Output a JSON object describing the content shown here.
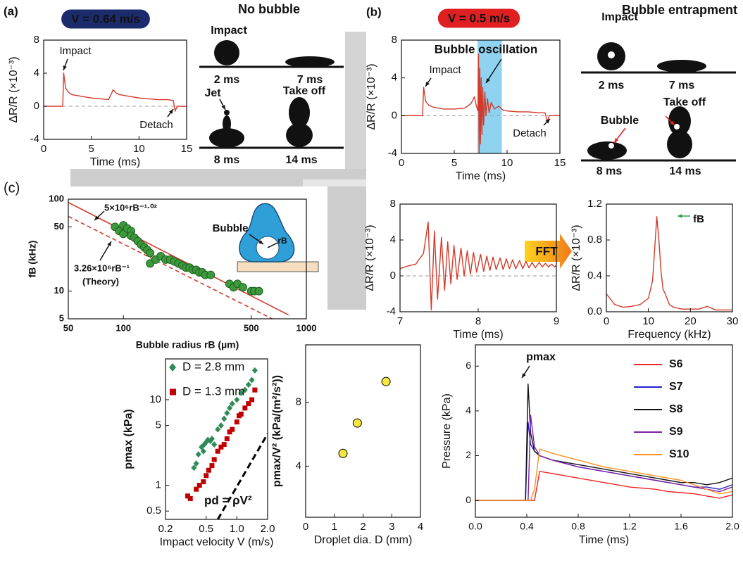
{
  "panel_labels": [
    "(a)",
    "(b)",
    "(c)"
  ],
  "fft_arrow": "FFT",
  "photos": [
    {
      "title": "No bubble",
      "labels": [
        "Impact",
        "2 ms",
        "7 ms",
        "Jet",
        "Take off",
        "8 ms",
        "14 ms"
      ]
    },
    {
      "title": "Bubble entrapment",
      "labels": [
        "Impact",
        "2 ms",
        "7 ms",
        "Bubble",
        "Take off",
        "8 ms",
        "14 ms"
      ]
    }
  ],
  "chart_data": [
    {
      "type": "line",
      "xlabel": "Time (ms)",
      "ylabel": "ΔR/R (×10⁻³)",
      "xlim": [
        0,
        15
      ],
      "ylim": [
        -4,
        8
      ],
      "xticks": [
        0,
        5,
        10,
        15
      ],
      "yticks": [
        -4,
        0,
        4,
        8
      ],
      "reference_line": 0,
      "annotations": [
        "V = 0.64 m/s",
        "Impact",
        "Detach"
      ],
      "x": [
        0,
        1,
        2,
        2.1,
        2.3,
        2.6,
        3,
        4,
        5,
        6,
        6.8,
        7.1,
        7.3,
        7.6,
        8,
        9,
        10,
        11,
        12,
        13,
        13.6,
        13.8,
        14,
        15
      ],
      "series": [
        {
          "color": "#d23a2a",
          "values": [
            0,
            0,
            0,
            4,
            2.2,
            1.7,
            1.4,
            1.2,
            1,
            0.9,
            0.8,
            1.5,
            2,
            1.6,
            1.4,
            1.2,
            1,
            0.9,
            0.8,
            0.8,
            0.7,
            -0.6,
            0,
            0
          ]
        }
      ]
    },
    {
      "type": "line",
      "xlabel": "Time (ms)",
      "ylabel": "ΔR/R (×10⁻³)",
      "xlim": [
        0,
        15
      ],
      "ylim": [
        -4,
        8
      ],
      "xticks": [
        0,
        5,
        10,
        15
      ],
      "yticks": [
        -4,
        0,
        4,
        8
      ],
      "reference_line": 0,
      "highlight": [
        7.2,
        9.5
      ],
      "annotations": [
        "V = 0.5 m/s",
        "Bubble oscillation",
        "Impact",
        "Detach"
      ],
      "x": [
        0,
        1,
        2,
        2.1,
        2.3,
        2.6,
        3,
        4,
        5,
        6,
        6.6,
        6.9,
        7.1,
        7.25,
        7.3,
        7.35,
        7.42,
        7.48,
        7.55,
        7.62,
        7.7,
        7.78,
        7.9,
        8.0,
        8.15,
        8.3,
        8.5,
        8.8,
        9.2,
        9.6,
        10,
        11,
        12,
        13,
        13.6,
        13.8,
        14,
        15
      ],
      "series": [
        {
          "color": "#d23a2a",
          "values": [
            0,
            0,
            0,
            3,
            1.5,
            1.1,
            0.9,
            0.7,
            0.7,
            0.8,
            1.3,
            2.0,
            1.0,
            0.5,
            6.5,
            -4,
            5,
            -3,
            4,
            -2,
            3,
            -1,
            2.5,
            0,
            1.8,
            0.3,
            1.4,
            0.7,
            1,
            0.6,
            0.5,
            0.4,
            0.4,
            0.3,
            0.3,
            -0.6,
            0,
            0
          ]
        }
      ]
    },
    {
      "type": "scatter",
      "xlabel": "Bubble radius rB (µm)",
      "ylabel": "fB (kHz)",
      "xlog": true,
      "ylog": true,
      "xlim": [
        50,
        1000
      ],
      "ylim": [
        5,
        100
      ],
      "xticks": [
        50,
        100,
        500,
        1000
      ],
      "yticks": [
        5,
        10,
        50,
        100
      ],
      "annotations": [
        "Bubble",
        "rB"
      ],
      "fits": [
        {
          "label": "5×10⁶rB⁻¹·⁰²",
          "x": [
            50,
            800
          ],
          "values": [
            92,
            5.5
          ],
          "style": "solid",
          "color": "#d23a2a"
        },
        {
          "label": "3.26×10⁶rB⁻¹",
          "note": "(Theory)",
          "x": [
            50,
            650
          ],
          "values": [
            65,
            5
          ],
          "style": "dashed",
          "color": "#d23a2a"
        }
      ],
      "series": [
        {
          "color": "#3c9a3c",
          "edgecolor": "#1f5f1f",
          "marker": "circle",
          "x": [
            90,
            95,
            100,
            100,
            105,
            110,
            110,
            115,
            120,
            125,
            130,
            135,
            140,
            140,
            150,
            160,
            170,
            180,
            190,
            200,
            210,
            220,
            230,
            240,
            250,
            260,
            270,
            280,
            300,
            380,
            400,
            420,
            450,
            500,
            520,
            550
          ],
          "values": [
            50,
            45,
            52,
            42,
            48,
            45,
            40,
            38,
            35,
            32,
            30,
            28,
            26,
            20,
            22,
            24,
            22,
            22,
            21,
            20,
            19,
            18,
            18,
            17,
            17,
            16,
            16,
            15,
            15,
            12,
            11,
            12,
            11,
            10,
            10,
            10
          ]
        }
      ]
    },
    {
      "type": "line",
      "xlabel": "Time (ms)",
      "ylabel": "ΔR/R (×10⁻³)",
      "xlim": [
        7,
        9
      ],
      "ylim": [
        -4,
        8
      ],
      "xticks": [
        7,
        8,
        9
      ],
      "yticks": [
        -4,
        0,
        4,
        8
      ],
      "reference_line": 0,
      "x": [
        7.0,
        7.1,
        7.2,
        7.3,
        7.36,
        7.4,
        7.44,
        7.48,
        7.53,
        7.57,
        7.61,
        7.65,
        7.69,
        7.73,
        7.78,
        7.82,
        7.86,
        7.9,
        7.94,
        7.98,
        8.03,
        8.07,
        8.11,
        8.15,
        8.19,
        8.23,
        8.28,
        8.32,
        8.36,
        8.4,
        8.44,
        8.48,
        8.53,
        8.57,
        8.61,
        8.65,
        8.69,
        8.73,
        8.78,
        8.82,
        8.86,
        8.9,
        8.94,
        8.98,
        9.0
      ],
      "series": [
        {
          "color": "#d23a2a",
          "values": [
            0.8,
            1.1,
            1.3,
            2.5,
            6.0,
            -3.8,
            5.0,
            -2.6,
            4.3,
            -1.6,
            3.8,
            -0.9,
            3.4,
            -0.4,
            3.1,
            0.0,
            2.8,
            0.2,
            2.6,
            0.4,
            2.4,
            0.5,
            2.2,
            0.6,
            2.1,
            0.7,
            2.0,
            0.7,
            1.9,
            0.8,
            1.8,
            0.8,
            1.7,
            0.8,
            1.6,
            0.9,
            1.5,
            0.9,
            1.5,
            1.0,
            1.4,
            1.0,
            1.3,
            1.0,
            1.2
          ]
        }
      ]
    },
    {
      "type": "line",
      "xlabel": "Frequency (kHz)",
      "ylabel": "ΔR/R (×10⁻³)",
      "xlim": [
        0,
        30
      ],
      "ylim": [
        0,
        1.2
      ],
      "xticks": [
        0,
        10,
        20,
        30
      ],
      "yticks": [
        {
          "value": 0,
          "label": "0.0"
        },
        0.4,
        0.8,
        1.2
      ],
      "annotations": [
        "fB"
      ],
      "x": [
        0,
        2,
        4,
        6,
        8,
        10,
        11,
        11.5,
        12,
        12.5,
        13,
        13.5,
        14,
        15,
        16,
        18,
        20,
        22,
        24,
        26,
        28,
        30
      ],
      "series": [
        {
          "color": "#d23a2a",
          "values": [
            0.2,
            0.08,
            0.05,
            0.06,
            0.08,
            0.15,
            0.35,
            0.7,
            1.06,
            0.8,
            0.45,
            0.25,
            0.2,
            0.08,
            0.05,
            0.03,
            0.03,
            0.03,
            0.06,
            0.02,
            0.02,
            0.02
          ]
        }
      ]
    },
    {
      "type": "scatter",
      "xlabel": "Impact velocity V (m/s)",
      "ylabel": "pmax (kPa)",
      "xlog": true,
      "ylog": true,
      "legend": "upper left",
      "xlim": [
        0.2,
        2.0
      ],
      "ylim": [
        0.4,
        30
      ],
      "xticks": [
        0.2,
        0.5,
        {
          "value": 1,
          "label": "1.0"
        },
        {
          "value": 2,
          "label": "2.0"
        }
      ],
      "yticks": [
        0.5,
        1,
        5,
        10
      ],
      "fits": [
        {
          "label": "pd = ρV²",
          "x": [
            0.65,
            2.0
          ],
          "values": [
            0.4,
            4.0
          ],
          "style": "dashed",
          "color": "#000000"
        }
      ],
      "series": [
        {
          "name": "D = 2.8 mm",
          "color": "#2e8b57",
          "marker": "diamond",
          "x": [
            0.38,
            0.4,
            0.42,
            0.45,
            0.47,
            0.48,
            0.5,
            0.52,
            0.55,
            0.57,
            0.6,
            0.65,
            0.7,
            0.75,
            0.8,
            0.85,
            0.9,
            1.0,
            1.1,
            1.2,
            1.3,
            1.4,
            1.5
          ],
          "values": [
            1.6,
            1.8,
            2.3,
            2.8,
            2.5,
            3.0,
            3.2,
            3.4,
            3.3,
            3.5,
            3.0,
            4.5,
            5,
            6,
            7,
            8,
            9,
            10,
            12,
            13,
            15,
            17,
            22
          ]
        },
        {
          "name": "D = 1.3 mm",
          "color": "#c00000",
          "marker": "square",
          "x": [
            0.33,
            0.35,
            0.4,
            0.43,
            0.47,
            0.5,
            0.53,
            0.57,
            0.6,
            0.65,
            0.7,
            0.75,
            0.8,
            0.85,
            0.9,
            1.0,
            1.05,
            1.1,
            1.2,
            1.3,
            1.4,
            1.5
          ],
          "values": [
            0.75,
            0.7,
            0.9,
            1.0,
            1.1,
            1.3,
            1.5,
            1.7,
            2.0,
            2.5,
            2.8,
            3.0,
            3.5,
            4.2,
            4.5,
            5.5,
            6.5,
            6.8,
            8,
            9,
            10,
            13
          ]
        }
      ]
    },
    {
      "type": "scatter",
      "xlabel": "Droplet dia. D (mm)",
      "ylabel": "pmax/V² (kPa/(m²/s²))",
      "xlim": [
        0,
        4
      ],
      "ylim": [
        0.8,
        11.6
      ],
      "xticks": [
        0,
        1,
        2,
        3,
        4
      ],
      "yticks": [
        4,
        8
      ],
      "series": [
        {
          "color": "#f5e642",
          "edgecolor": "#000000",
          "marker": "circle",
          "x": [
            1.3,
            1.8,
            2.8
          ],
          "values": [
            4.8,
            6.7,
            9.3
          ]
        }
      ]
    },
    {
      "type": "line",
      "xlabel": "Time (ms)",
      "ylabel": "Pressure (kPa)",
      "legend": "upper right",
      "xlim": [
        0,
        2.0
      ],
      "ylim": [
        -0.75,
        6.95
      ],
      "xticks": [
        {
          "value": 0,
          "label": "0.0"
        },
        0.4,
        0.8,
        1.2,
        1.6,
        {
          "value": 2,
          "label": "2.0"
        }
      ],
      "yticks": [
        0,
        2,
        4,
        6
      ],
      "annotations": [
        "pmax"
      ],
      "x": [
        0,
        0.39,
        0.41,
        0.43,
        0.46,
        0.5,
        0.6,
        0.8,
        1.0,
        1.2,
        1.4,
        1.5,
        1.6,
        1.7,
        1.8,
        1.9,
        2.0
      ],
      "series": [
        {
          "name": "S6",
          "color": "#ee2222",
          "values": [
            0,
            0,
            0,
            0,
            0,
            1.3,
            1.2,
            1.0,
            0.8,
            0.6,
            0.5,
            0.4,
            0.35,
            0.3,
            0.2,
            0.1,
            0.25
          ]
        },
        {
          "name": "S7",
          "color": "#2222cc",
          "values": [
            0,
            0,
            3.5,
            2.5,
            2.2,
            2.0,
            1.8,
            1.5,
            1.3,
            1.1,
            0.9,
            0.8,
            0.7,
            0.6,
            0.6,
            0.5,
            0.7
          ]
        },
        {
          "name": "S8",
          "color": "#111111",
          "values": [
            0,
            0,
            5.2,
            3.0,
            2.2,
            2.0,
            1.8,
            1.6,
            1.4,
            1.2,
            1.0,
            0.9,
            0.8,
            0.8,
            0.7,
            0.8,
            1.0
          ]
        },
        {
          "name": "S9",
          "color": "#7a1fa2",
          "values": [
            0,
            0,
            0,
            3.8,
            2.4,
            2.0,
            1.8,
            1.5,
            1.3,
            1.1,
            0.9,
            0.8,
            0.7,
            0.6,
            0.5,
            0.4,
            0.6
          ]
        },
        {
          "name": "S10",
          "color": "#ff9020",
          "values": [
            0,
            0,
            0,
            0,
            0.5,
            2.3,
            2.1,
            1.8,
            1.5,
            1.3,
            1.1,
            1.0,
            0.9,
            0.7,
            0.5,
            0.3,
            0.4
          ]
        }
      ]
    }
  ]
}
